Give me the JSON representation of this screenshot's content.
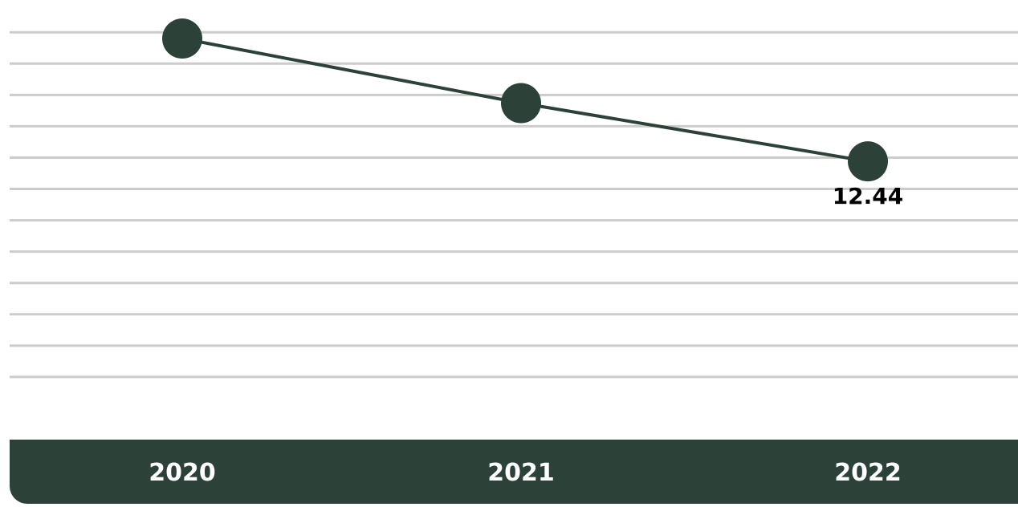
{
  "chart_data": {
    "type": "line",
    "categories": [
      "2020",
      "2021",
      "2022"
    ],
    "series": [
      {
        "values": [
          14.4,
          13.37,
          12.44
        ]
      }
    ],
    "data_labels": [
      {
        "index": 2,
        "text": "12.44"
      }
    ],
    "ylim": [
      8,
      14.9
    ],
    "y_gridline_step": 0.5,
    "grid": true,
    "legend": "none",
    "colors": {
      "line": "#2c4239",
      "marker": "#2c4239",
      "axis_bar": "#2c4239",
      "gridline": "#cccccc",
      "tick_text": "#ffffff"
    }
  }
}
